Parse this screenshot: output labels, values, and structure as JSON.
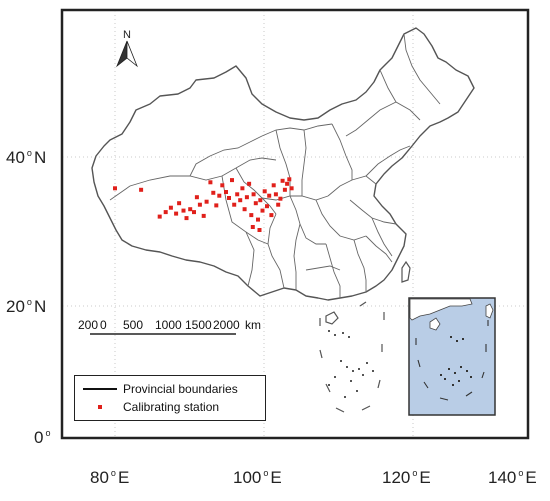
{
  "map": {
    "north_arrow_label": "N",
    "lat_labels": [
      "40",
      "N",
      "20",
      "N",
      "0"
    ],
    "lat_ticks": [
      {
        "value": "40",
        "hemi": "N"
      },
      {
        "value": "20",
        "hemi": "N"
      },
      {
        "value": "0",
        "hemi": ""
      }
    ],
    "lon_ticks": [
      {
        "value": "80",
        "hemi": "E"
      },
      {
        "value": "100",
        "hemi": "E"
      },
      {
        "value": "120",
        "hemi": "E"
      },
      {
        "value": "140",
        "hemi": "E"
      }
    ],
    "scale_bar": {
      "ticks": [
        "200",
        "0",
        "500",
        "1000",
        "1500",
        "2000",
        "km"
      ]
    },
    "legend": {
      "boundaries_label": "Provincial boundaries",
      "stations_label": "Calibrating station"
    },
    "colors": {
      "station": "#e0201b",
      "inset_fill": "#b9cde6",
      "boundary": "#555555",
      "frame": "#333333"
    },
    "stations": [
      {
        "lon": 80.0,
        "lat": 35.8
      },
      {
        "lon": 83.5,
        "lat": 35.6
      },
      {
        "lon": 86.0,
        "lat": 32.0
      },
      {
        "lon": 86.8,
        "lat": 32.6
      },
      {
        "lon": 87.5,
        "lat": 33.2
      },
      {
        "lon": 88.2,
        "lat": 32.4
      },
      {
        "lon": 88.6,
        "lat": 33.8
      },
      {
        "lon": 89.2,
        "lat": 32.8
      },
      {
        "lon": 89.6,
        "lat": 31.8
      },
      {
        "lon": 90.1,
        "lat": 33.0
      },
      {
        "lon": 90.6,
        "lat": 32.6
      },
      {
        "lon": 91.0,
        "lat": 34.6
      },
      {
        "lon": 91.4,
        "lat": 33.6
      },
      {
        "lon": 91.9,
        "lat": 32.1
      },
      {
        "lon": 92.3,
        "lat": 34.0
      },
      {
        "lon": 92.8,
        "lat": 36.6
      },
      {
        "lon": 93.2,
        "lat": 35.2
      },
      {
        "lon": 93.6,
        "lat": 33.5
      },
      {
        "lon": 94.0,
        "lat": 34.8
      },
      {
        "lon": 94.4,
        "lat": 36.2
      },
      {
        "lon": 94.9,
        "lat": 35.3
      },
      {
        "lon": 95.3,
        "lat": 34.5
      },
      {
        "lon": 95.7,
        "lat": 36.9
      },
      {
        "lon": 96.0,
        "lat": 33.6
      },
      {
        "lon": 96.4,
        "lat": 35.0
      },
      {
        "lon": 96.8,
        "lat": 34.2
      },
      {
        "lon": 97.1,
        "lat": 35.8
      },
      {
        "lon": 97.4,
        "lat": 33.0
      },
      {
        "lon": 97.7,
        "lat": 34.6
      },
      {
        "lon": 98.0,
        "lat": 36.4
      },
      {
        "lon": 98.3,
        "lat": 32.2
      },
      {
        "lon": 98.6,
        "lat": 35.0
      },
      {
        "lon": 98.9,
        "lat": 33.8
      },
      {
        "lon": 99.2,
        "lat": 31.6
      },
      {
        "lon": 99.5,
        "lat": 34.2
      },
      {
        "lon": 99.8,
        "lat": 32.8
      },
      {
        "lon": 100.1,
        "lat": 35.4
      },
      {
        "lon": 100.4,
        "lat": 33.4
      },
      {
        "lon": 100.7,
        "lat": 34.8
      },
      {
        "lon": 101.0,
        "lat": 32.2
      },
      {
        "lon": 101.3,
        "lat": 36.2
      },
      {
        "lon": 101.6,
        "lat": 35.0
      },
      {
        "lon": 101.9,
        "lat": 33.6
      },
      {
        "lon": 102.2,
        "lat": 34.4
      },
      {
        "lon": 102.5,
        "lat": 36.8
      },
      {
        "lon": 102.8,
        "lat": 35.6
      },
      {
        "lon": 103.1,
        "lat": 36.4
      },
      {
        "lon": 103.4,
        "lat": 37.0
      },
      {
        "lon": 103.7,
        "lat": 35.8
      },
      {
        "lon": 98.5,
        "lat": 30.6
      },
      {
        "lon": 99.4,
        "lat": 30.2
      }
    ]
  }
}
